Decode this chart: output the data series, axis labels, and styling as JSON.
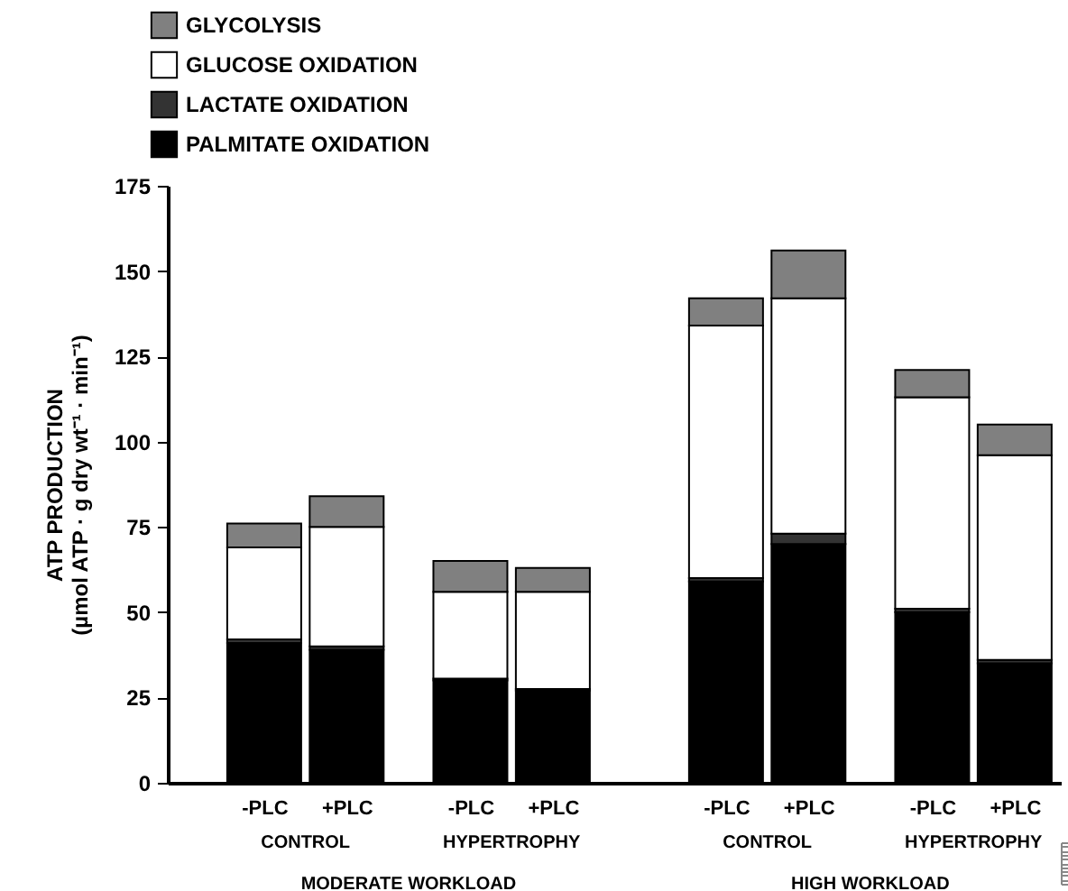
{
  "chart_data": {
    "type": "bar",
    "stacked": true,
    "ylabel": "ATP PRODUCTION\n(µmol ATP · g dry wt⁻¹ · min⁻¹)",
    "categories": [
      "-PLC",
      "+PLC",
      "-PLC",
      "+PLC",
      "-PLC",
      "+PLC",
      "-PLC",
      "+PLC"
    ],
    "series": [
      {
        "name": "PALMITATE OXIDATION",
        "color": "#000000",
        "values": [
          41,
          39,
          30,
          27,
          59,
          70,
          50,
          35
        ]
      },
      {
        "name": "LACTATE OXIDATION",
        "color": "#333333",
        "values": [
          1,
          1,
          0.5,
          0.5,
          1,
          3,
          1,
          1
        ]
      },
      {
        "name": "GLUCOSE OXIDATION",
        "color": "#ffffff",
        "values": [
          27,
          35,
          25.5,
          28.5,
          74,
          69,
          62,
          60
        ]
      },
      {
        "name": "GLYCOLYSIS",
        "color": "#808080",
        "values": [
          7,
          9,
          9,
          7,
          8,
          14,
          8,
          9
        ]
      }
    ],
    "ylim": [
      0,
      175
    ],
    "yticks": [
      0,
      25,
      50,
      75,
      100,
      125,
      150,
      175
    ],
    "legend": "top left",
    "annotations": [
      "CONTROL",
      "HYPERTROPHY",
      "CONTROL",
      "HYPERTROPHY",
      "MODERATE WORKLOAD",
      "HIGH WORKLOAD"
    ]
  }
}
